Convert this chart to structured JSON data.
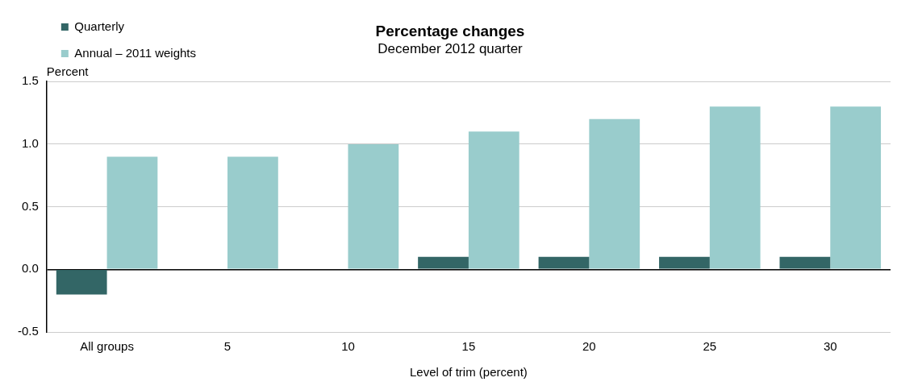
{
  "chart_data": {
    "type": "bar",
    "title": "Percentage changes",
    "subtitle": "December 2012 quarter",
    "xlabel": "Level of trim (percent)",
    "ylabel": "Percent",
    "categories": [
      "All groups",
      "5",
      "10",
      "15",
      "20",
      "25",
      "30"
    ],
    "series": [
      {
        "name": "Quarterly",
        "color": "#336666",
        "values": [
          -0.2,
          0,
          0,
          0.1,
          0.1,
          0.1,
          0.1
        ]
      },
      {
        "name": "Annual – 2011 weights",
        "color": "#99cccc",
        "values": [
          0.9,
          0.9,
          1.0,
          1.1,
          1.2,
          1.3,
          1.3
        ]
      }
    ],
    "ylim": [
      -0.5,
      1.5
    ],
    "yticks": [
      {
        "value": -0.5,
        "label": "-0.5"
      },
      {
        "value": 0,
        "label": "0.0"
      },
      {
        "value": 0.5,
        "label": "0.5"
      },
      {
        "value": 1,
        "label": "1.0"
      },
      {
        "value": 1.5,
        "label": "1.5"
      }
    ],
    "grid": "y",
    "legend": "top left"
  }
}
